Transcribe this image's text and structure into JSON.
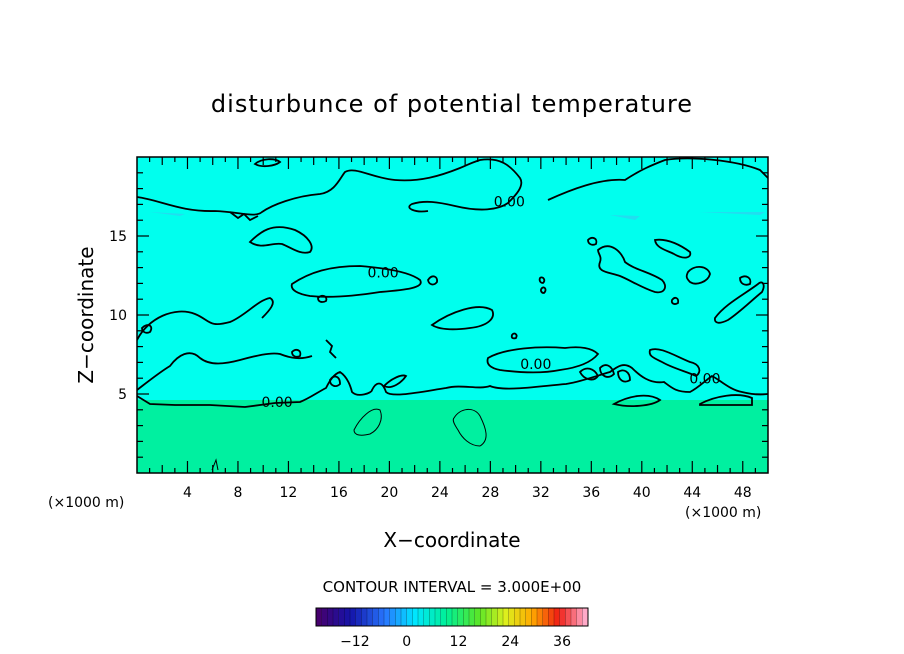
{
  "chart_data": {
    "type": "heatmap",
    "title": "disturbunce of potential temperature",
    "xlabel": "X−coordinate",
    "ylabel": "Z−coordinate",
    "x_unit": "(×1000 m)",
    "z_unit": "(×1000 m)",
    "xlim": [
      0,
      50
    ],
    "ylim": [
      0,
      20
    ],
    "x_ticks": [
      4,
      8,
      12,
      16,
      20,
      24,
      28,
      32,
      36,
      40,
      44,
      48
    ],
    "y_ticks": [
      5,
      10,
      15
    ],
    "contour_interval_text": "CONTOUR INTERVAL = 3.000E+00",
    "contour_level_labels": [
      {
        "text": "0.00",
        "x": 29.5,
        "z": 17.0
      },
      {
        "text": "0.00",
        "x": 19.5,
        "z": 12.5
      },
      {
        "text": "0.00",
        "x": 31.6,
        "z": 6.7
      },
      {
        "text": "0.00",
        "x": 45.0,
        "z": 5.8
      },
      {
        "text": "0.00",
        "x": 11.1,
        "z": 4.3
      }
    ],
    "regions": [
      {
        "label": "upper",
        "z_range": [
          4.2,
          20
        ],
        "value_approx": 0,
        "color": "#00ffee"
      },
      {
        "label": "lower",
        "z_range": [
          0,
          4.2
        ],
        "value_approx": 3,
        "color": "#00f0a0"
      }
    ],
    "colorbar": {
      "range": [
        -21,
        42
      ],
      "tick_values": [
        -12,
        0,
        12,
        24,
        36
      ],
      "tick_labels": [
        "−12",
        "0",
        "12",
        "24",
        "36"
      ]
    }
  }
}
